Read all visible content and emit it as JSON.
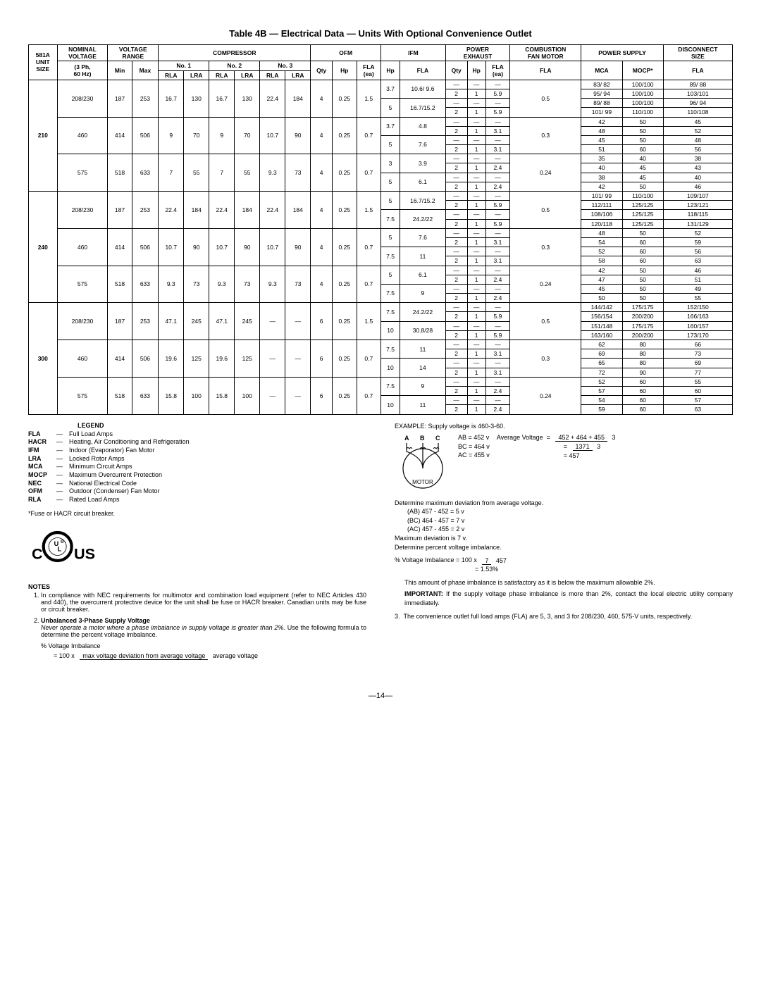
{
  "title": "Table 4B — Electrical Data — Units With Optional Convenience Outlet",
  "headers": {
    "unit": "581A\nUNIT\nSIZE",
    "nominal": "NOMINAL\nVOLTAGE",
    "nominal_sub": "(3 Ph,\n60 Hz)",
    "voltage_range": "VOLTAGE\nRANGE",
    "min": "Min",
    "max": "Max",
    "compressor": "COMPRESSOR",
    "no1": "No. 1",
    "no2": "No. 2",
    "no3": "No. 3",
    "rla": "RLA",
    "lra": "LRA",
    "ofm": "OFM",
    "qty": "Qty",
    "hp": "Hp",
    "fla_ea": "FLA\n(ea)",
    "ifm": "IFM",
    "fla": "FLA",
    "power_exhaust": "POWER\nEXHAUST",
    "combustion": "COMBUSTION\nFAN MOTOR",
    "power_supply": "POWER SUPPLY",
    "mca": "MCA",
    "mocp": "MOCP*",
    "disconnect": "DISCONNECT\nSIZE"
  },
  "rows": [
    {
      "unit": "210",
      "volt": "208/230",
      "min": "187",
      "max": "253",
      "c1r": "16.7",
      "c1l": "130",
      "c2r": "16.7",
      "c2l": "130",
      "c3r": "22.4",
      "c3l": "184",
      "oq": "4",
      "oh": "0.25",
      "of": "1.5",
      "ifm": [
        {
          "hp": "3.7",
          "fla": "10.6/ 9.6",
          "pe": [
            [
              "—",
              "—",
              "—"
            ],
            [
              "2",
              "1",
              "5.9"
            ]
          ],
          "comb": "0.5",
          "ps": [
            [
              "83/ 82",
              "100/100",
              "89/ 88"
            ],
            [
              "95/ 94",
              "100/100",
              "103/101"
            ]
          ]
        },
        {
          "hp": "5",
          "fla": "16.7/15.2",
          "pe": [
            [
              "—",
              "—",
              "—"
            ],
            [
              "2",
              "1",
              "5.9"
            ]
          ],
          "comb": "",
          "ps": [
            [
              "89/ 88",
              "100/100",
              "96/ 94"
            ],
            [
              "101/ 99",
              "110/100",
              "110/108"
            ]
          ]
        }
      ]
    },
    {
      "unit": "",
      "volt": "460",
      "min": "414",
      "max": "506",
      "c1r": "9",
      "c1l": "70",
      "c2r": "9",
      "c2l": "70",
      "c3r": "10.7",
      "c3l": "90",
      "oq": "4",
      "oh": "0.25",
      "of": "0.7",
      "ifm": [
        {
          "hp": "3.7",
          "fla": "4.8",
          "pe": [
            [
              "—",
              "—",
              "—"
            ],
            [
              "2",
              "1",
              "3.1"
            ]
          ],
          "comb": "0.3",
          "ps": [
            [
              "42",
              "50",
              "45"
            ],
            [
              "48",
              "50",
              "52"
            ]
          ]
        },
        {
          "hp": "5",
          "fla": "7.6",
          "pe": [
            [
              "—",
              "—",
              "—"
            ],
            [
              "2",
              "1",
              "3.1"
            ]
          ],
          "comb": "",
          "ps": [
            [
              "45",
              "50",
              "48"
            ],
            [
              "51",
              "60",
              "56"
            ]
          ]
        }
      ]
    },
    {
      "unit": "",
      "volt": "575",
      "min": "518",
      "max": "633",
      "c1r": "7",
      "c1l": "55",
      "c2r": "7",
      "c2l": "55",
      "c3r": "9.3",
      "c3l": "73",
      "oq": "4",
      "oh": "0.25",
      "of": "0.7",
      "ifm": [
        {
          "hp": "3",
          "fla": "3.9",
          "pe": [
            [
              "—",
              "—",
              "—"
            ],
            [
              "2",
              "1",
              "2.4"
            ]
          ],
          "comb": "0.24",
          "ps": [
            [
              "35",
              "40",
              "38"
            ],
            [
              "40",
              "45",
              "43"
            ]
          ]
        },
        {
          "hp": "5",
          "fla": "6.1",
          "pe": [
            [
              "—",
              "—",
              "—"
            ],
            [
              "2",
              "1",
              "2.4"
            ]
          ],
          "comb": "",
          "ps": [
            [
              "38",
              "45",
              "40"
            ],
            [
              "42",
              "50",
              "46"
            ]
          ]
        }
      ]
    },
    {
      "unit": "240",
      "volt": "208/230",
      "min": "187",
      "max": "253",
      "c1r": "22.4",
      "c1l": "184",
      "c2r": "22.4",
      "c2l": "184",
      "c3r": "22.4",
      "c3l": "184",
      "oq": "4",
      "oh": "0.25",
      "of": "1.5",
      "ifm": [
        {
          "hp": "5",
          "fla": "16.7/15.2",
          "pe": [
            [
              "—",
              "—",
              "—"
            ],
            [
              "2",
              "1",
              "5.9"
            ]
          ],
          "comb": "0.5",
          "ps": [
            [
              "101/ 99",
              "110/100",
              "109/107"
            ],
            [
              "112/111",
              "125/125",
              "123/121"
            ]
          ]
        },
        {
          "hp": "7.5",
          "fla": "24.2/22",
          "pe": [
            [
              "—",
              "—",
              "—"
            ],
            [
              "2",
              "1",
              "5.9"
            ]
          ],
          "comb": "",
          "ps": [
            [
              "108/106",
              "125/125",
              "118/115"
            ],
            [
              "120/118",
              "125/125",
              "131/129"
            ]
          ]
        }
      ]
    },
    {
      "unit": "",
      "volt": "460",
      "min": "414",
      "max": "506",
      "c1r": "10.7",
      "c1l": "90",
      "c2r": "10.7",
      "c2l": "90",
      "c3r": "10.7",
      "c3l": "90",
      "oq": "4",
      "oh": "0.25",
      "of": "0.7",
      "ifm": [
        {
          "hp": "5",
          "fla": "7.6",
          "pe": [
            [
              "—",
              "—",
              "—"
            ],
            [
              "2",
              "1",
              "3.1"
            ]
          ],
          "comb": "0.3",
          "ps": [
            [
              "48",
              "50",
              "52"
            ],
            [
              "54",
              "60",
              "59"
            ]
          ]
        },
        {
          "hp": "7.5",
          "fla": "11",
          "pe": [
            [
              "—",
              "—",
              "—"
            ],
            [
              "2",
              "1",
              "3.1"
            ]
          ],
          "comb": "",
          "ps": [
            [
              "52",
              "60",
              "56"
            ],
            [
              "58",
              "60",
              "63"
            ]
          ]
        }
      ]
    },
    {
      "unit": "",
      "volt": "575",
      "min": "518",
      "max": "633",
      "c1r": "9.3",
      "c1l": "73",
      "c2r": "9.3",
      "c2l": "73",
      "c3r": "9.3",
      "c3l": "73",
      "oq": "4",
      "oh": "0.25",
      "of": "0.7",
      "ifm": [
        {
          "hp": "5",
          "fla": "6.1",
          "pe": [
            [
              "—",
              "—",
              "—"
            ],
            [
              "2",
              "1",
              "2.4"
            ]
          ],
          "comb": "0.24",
          "ps": [
            [
              "42",
              "50",
              "46"
            ],
            [
              "47",
              "50",
              "51"
            ]
          ]
        },
        {
          "hp": "7.5",
          "fla": "9",
          "pe": [
            [
              "—",
              "—",
              "—"
            ],
            [
              "2",
              "1",
              "2.4"
            ]
          ],
          "comb": "",
          "ps": [
            [
              "45",
              "50",
              "49"
            ],
            [
              "50",
              "50",
              "55"
            ]
          ]
        }
      ]
    },
    {
      "unit": "300",
      "volt": "208/230",
      "min": "187",
      "max": "253",
      "c1r": "47.1",
      "c1l": "245",
      "c2r": "47.1",
      "c2l": "245",
      "c3r": "—",
      "c3l": "—",
      "oq": "6",
      "oh": "0.25",
      "of": "1.5",
      "ifm": [
        {
          "hp": "7.5",
          "fla": "24.2/22",
          "pe": [
            [
              "—",
              "—",
              "—"
            ],
            [
              "2",
              "1",
              "5.9"
            ]
          ],
          "comb": "0.5",
          "ps": [
            [
              "144/142",
              "175/175",
              "152/150"
            ],
            [
              "156/154",
              "200/200",
              "166/163"
            ]
          ]
        },
        {
          "hp": "10",
          "fla": "30.8/28",
          "pe": [
            [
              "—",
              "—",
              "—"
            ],
            [
              "2",
              "1",
              "5.9"
            ]
          ],
          "comb": "",
          "ps": [
            [
              "151/148",
              "175/175",
              "160/157"
            ],
            [
              "163/160",
              "200/200",
              "173/170"
            ]
          ]
        }
      ]
    },
    {
      "unit": "",
      "volt": "460",
      "min": "414",
      "max": "506",
      "c1r": "19.6",
      "c1l": "125",
      "c2r": "19.6",
      "c2l": "125",
      "c3r": "—",
      "c3l": "—",
      "oq": "6",
      "oh": "0.25",
      "of": "0.7",
      "ifm": [
        {
          "hp": "7.5",
          "fla": "11",
          "pe": [
            [
              "—",
              "—",
              "—"
            ],
            [
              "2",
              "1",
              "3.1"
            ]
          ],
          "comb": "0.3",
          "ps": [
            [
              "62",
              "80",
              "66"
            ],
            [
              "69",
              "80",
              "73"
            ]
          ]
        },
        {
          "hp": "10",
          "fla": "14",
          "pe": [
            [
              "—",
              "—",
              "—"
            ],
            [
              "2",
              "1",
              "3.1"
            ]
          ],
          "comb": "",
          "ps": [
            [
              "65",
              "80",
              "69"
            ],
            [
              "72",
              "90",
              "77"
            ]
          ]
        }
      ]
    },
    {
      "unit": "",
      "volt": "575",
      "min": "518",
      "max": "633",
      "c1r": "15.8",
      "c1l": "100",
      "c2r": "15.8",
      "c2l": "100",
      "c3r": "—",
      "c3l": "—",
      "oq": "6",
      "oh": "0.25",
      "of": "0.7",
      "ifm": [
        {
          "hp": "7.5",
          "fla": "9",
          "pe": [
            [
              "—",
              "—",
              "—"
            ],
            [
              "2",
              "1",
              "2.4"
            ]
          ],
          "comb": "0.24",
          "ps": [
            [
              "52",
              "60",
              "55"
            ],
            [
              "57",
              "60",
              "60"
            ]
          ]
        },
        {
          "hp": "10",
          "fla": "11",
          "pe": [
            [
              "—",
              "—",
              "—"
            ],
            [
              "2",
              "1",
              "2.4"
            ]
          ],
          "comb": "",
          "ps": [
            [
              "54",
              "60",
              "57"
            ],
            [
              "59",
              "60",
              "63"
            ]
          ]
        }
      ]
    }
  ],
  "legend_title": "LEGEND",
  "legend": [
    [
      "FLA",
      "Full Load Amps"
    ],
    [
      "HACR",
      "Heating, Air Conditioning and Refrigeration"
    ],
    [
      "IFM",
      "Indoor (Evaporator) Fan Motor"
    ],
    [
      "LRA",
      "Locked Rotor Amps"
    ],
    [
      "MCA",
      "Minimum Circuit Amps"
    ],
    [
      "MOCP",
      "Maximum Overcurrent Protection"
    ],
    [
      "NEC",
      "National Electrical Code"
    ],
    [
      "OFM",
      "Outdoor (Condenser) Fan Motor"
    ],
    [
      "RLA",
      "Rated Load Amps"
    ]
  ],
  "fuse_note": "*Fuse or HACR circuit breaker.",
  "notes_title": "NOTES",
  "notes": {
    "n1": "In compliance with NEC requirements for multimotor and combination load equipment (refer to NEC Articles 430 and 440), the overcurrent protective device for the unit shall be fuse or HACR breaker. Canadian units may be fuse or circuit breaker.",
    "n2_title": "Unbalanced 3-Phase Supply Voltage",
    "n2_italic": "Never operate a motor where a phase imbalance in supply voltage is greater than 2%.",
    "n2_rest": " Use the following formula to determine the percent voltage imbalance.",
    "pvi": "% Voltage Imbalance",
    "eq100": "= 100 x",
    "frac_top": "max voltage deviation from average voltage",
    "frac_bot": "average voltage"
  },
  "example": {
    "header": "EXAMPLE: Supply voltage is 460-3-60.",
    "ab": "AB = 452 v",
    "bc": "BC = 464 v",
    "ac": "AC = 455 v",
    "avg_label": "Average Voltage",
    "avg_frac_top": "452 + 464 + 455",
    "avg_frac_bot": "3",
    "avg_step2_top": "1371",
    "avg_step2_bot": "3",
    "avg_result": "=  457",
    "det1": "Determine maximum deviation from average voltage.",
    "dev_ab": "(AB) 457 - 452 = 5 v",
    "dev_bc": "(BC) 464 - 457 = 7 v",
    "dev_ac": "(AC) 457 - 455 = 2 v",
    "max_dev": "Maximum deviation is 7 v.",
    "det2": "Determine percent voltage imbalance.",
    "pvi_label": "% Voltage Imbalance  = 100 x",
    "pvi_top": "7",
    "pvi_bot": "457",
    "pvi_result": "= 1.53%",
    "conclusion": "This amount of phase imbalance is satisfactory as it is below the maximum allowable 2%.",
    "important_label": "IMPORTANT:",
    "important": " If the supply voltage phase imbalance is more than 2%, contact the local electric utility company immediately.",
    "n3": "The convenience outlet full load amps (FLA) are 5, 3, and 3 for 208/230, 460, 575-V units, respectively."
  },
  "page": "—14—"
}
